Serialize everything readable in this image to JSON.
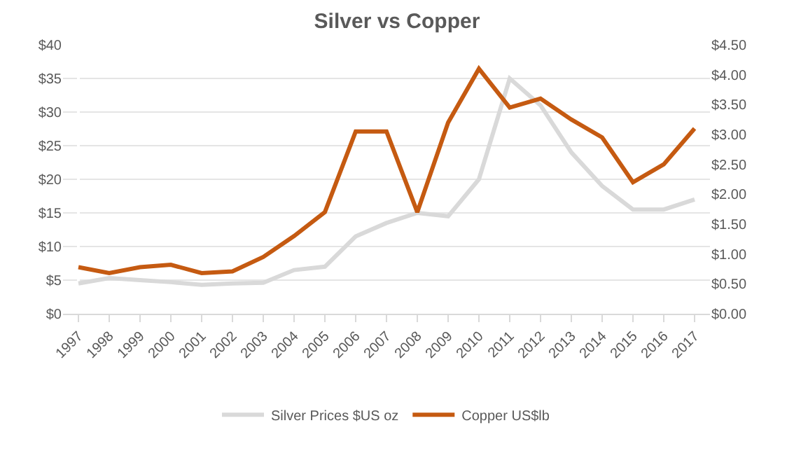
{
  "chart_data": {
    "type": "line",
    "title": "Silver vs Copper",
    "categories": [
      "1997",
      "1998",
      "1999",
      "2000",
      "2001",
      "2002",
      "2003",
      "2004",
      "2005",
      "2006",
      "2007",
      "2008",
      "2009",
      "2010",
      "2011",
      "2012",
      "2013",
      "2014",
      "2015",
      "2016",
      "2017"
    ],
    "series": [
      {
        "name": "Silver Prices $US oz",
        "color": "#d9d9d9",
        "values": [
          4.5,
          5.3,
          5.0,
          4.7,
          4.3,
          4.5,
          4.6,
          6.5,
          7.0,
          11.5,
          13.5,
          15,
          14.5,
          20,
          35,
          31,
          24,
          19,
          15.5,
          15.5,
          17
        ]
      },
      {
        "name": "Copper US$lb",
        "color": "#c55a11",
        "axis": "y2",
        "values": [
          0.78,
          0.68,
          0.78,
          0.82,
          0.68,
          0.71,
          0.95,
          1.3,
          1.7,
          3.05,
          3.05,
          1.7,
          3.2,
          4.1,
          3.45,
          3.6,
          3.25,
          2.95,
          2.2,
          2.5,
          3.1
        ]
      }
    ],
    "ylim": [
      0,
      40
    ],
    "yticks": [
      {
        "value": 0,
        "label": "$0"
      },
      {
        "value": 5,
        "label": "$5"
      },
      {
        "value": 10,
        "label": "$10"
      },
      {
        "value": 15,
        "label": "$15"
      },
      {
        "value": 20,
        "label": "$20"
      },
      {
        "value": 25,
        "label": "$25"
      },
      {
        "value": 30,
        "label": "$30"
      },
      {
        "value": 35,
        "label": "$35"
      },
      {
        "value": 40,
        "label": "$40"
      }
    ],
    "y2lim": [
      0,
      4.5
    ],
    "y2ticks": [
      {
        "value": 0,
        "label": "$0.00"
      },
      {
        "value": 0.5,
        "label": "$0.50"
      },
      {
        "value": 1,
        "label": "$1.00"
      },
      {
        "value": 1.5,
        "label": "$1.50"
      },
      {
        "value": 2,
        "label": "$2.00"
      },
      {
        "value": 2.5,
        "label": "$2.50"
      },
      {
        "value": 3,
        "label": "$3.00"
      },
      {
        "value": 3.5,
        "label": "$3.50"
      },
      {
        "value": 4,
        "label": "$4.00"
      },
      {
        "value": 4.5,
        "label": "$4.50"
      }
    ],
    "grid": "y",
    "legend": "bottom",
    "marker": "none",
    "line_style": "solid"
  }
}
